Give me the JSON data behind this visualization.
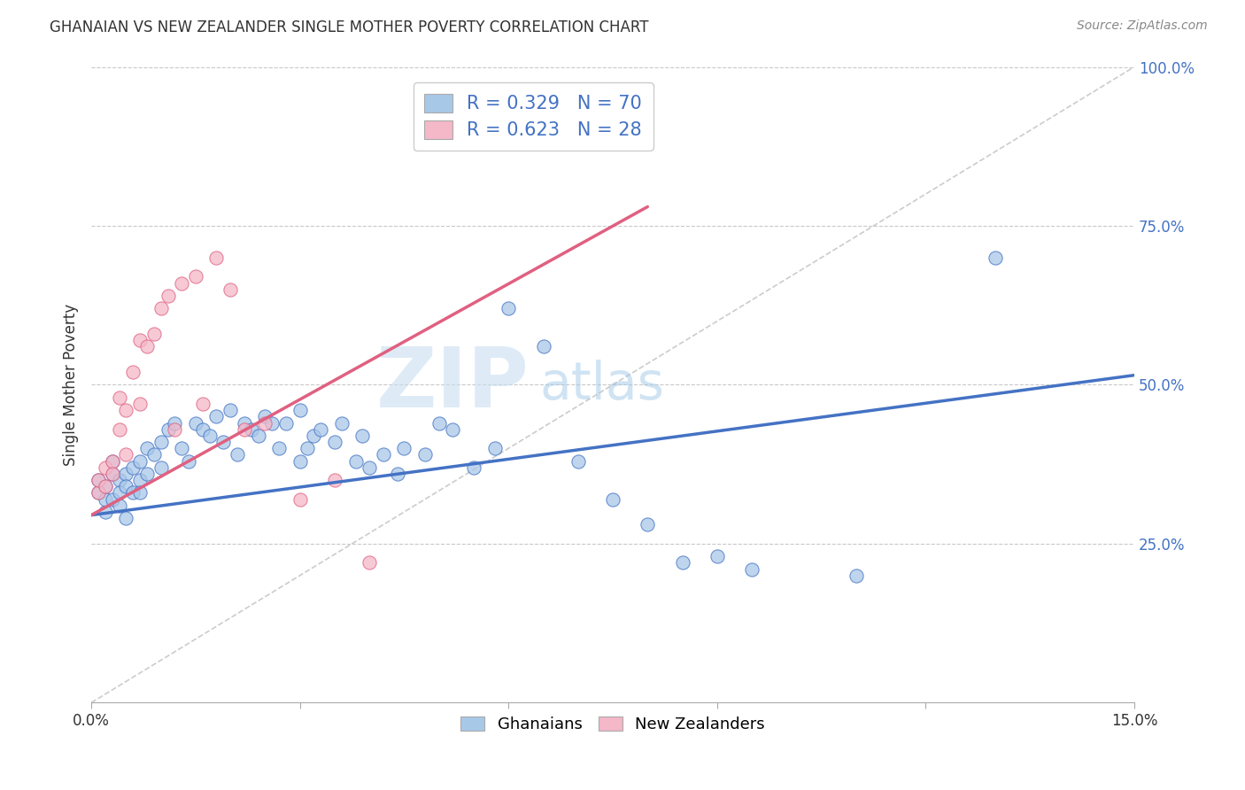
{
  "title": "GHANAIAN VS NEW ZEALANDER SINGLE MOTHER POVERTY CORRELATION CHART",
  "source": "Source: ZipAtlas.com",
  "ylabel": "Single Mother Poverty",
  "x_min": 0.0,
  "x_max": 0.15,
  "y_min": 0.0,
  "y_max": 1.0,
  "x_ticks": [
    0.0,
    0.03,
    0.06,
    0.09,
    0.12,
    0.15
  ],
  "x_tick_labels": [
    "0.0%",
    "",
    "",
    "",
    "",
    "15.0%"
  ],
  "y_ticks": [
    0.25,
    0.5,
    0.75,
    1.0
  ],
  "y_tick_labels": [
    "25.0%",
    "50.0%",
    "75.0%",
    "100.0%"
  ],
  "ghanaian_color": "#a8c8e8",
  "ghanaian_edge": "#4472c4",
  "nz_color": "#f4b8c8",
  "nz_edge": "#e06080",
  "trendline_ghanaian": "#4472c4",
  "trendline_nz": "#e06080",
  "diagonal_color": "#cccccc",
  "legend_r1": "0.329",
  "legend_n1": "70",
  "legend_r2": "0.623",
  "legend_n2": "28",
  "watermark_zip": "ZIP",
  "watermark_atlas": "atlas",
  "background": "#ffffff",
  "ghanaian_x": [
    0.001,
    0.001,
    0.002,
    0.002,
    0.002,
    0.003,
    0.003,
    0.003,
    0.004,
    0.004,
    0.004,
    0.005,
    0.005,
    0.005,
    0.006,
    0.006,
    0.007,
    0.007,
    0.007,
    0.008,
    0.008,
    0.009,
    0.01,
    0.01,
    0.011,
    0.012,
    0.013,
    0.014,
    0.015,
    0.016,
    0.017,
    0.018,
    0.019,
    0.02,
    0.021,
    0.022,
    0.023,
    0.024,
    0.025,
    0.026,
    0.027,
    0.028,
    0.03,
    0.03,
    0.031,
    0.032,
    0.033,
    0.035,
    0.036,
    0.038,
    0.039,
    0.04,
    0.042,
    0.044,
    0.045,
    0.048,
    0.05,
    0.052,
    0.055,
    0.058,
    0.06,
    0.065,
    0.07,
    0.075,
    0.08,
    0.085,
    0.09,
    0.095,
    0.11,
    0.13
  ],
  "ghanaian_y": [
    0.33,
    0.35,
    0.34,
    0.3,
    0.32,
    0.36,
    0.38,
    0.32,
    0.35,
    0.31,
    0.33,
    0.36,
    0.34,
    0.29,
    0.37,
    0.33,
    0.38,
    0.35,
    0.33,
    0.4,
    0.36,
    0.39,
    0.41,
    0.37,
    0.43,
    0.44,
    0.4,
    0.38,
    0.44,
    0.43,
    0.42,
    0.45,
    0.41,
    0.46,
    0.39,
    0.44,
    0.43,
    0.42,
    0.45,
    0.44,
    0.4,
    0.44,
    0.38,
    0.46,
    0.4,
    0.42,
    0.43,
    0.41,
    0.44,
    0.38,
    0.42,
    0.37,
    0.39,
    0.36,
    0.4,
    0.39,
    0.44,
    0.43,
    0.37,
    0.4,
    0.62,
    0.56,
    0.38,
    0.32,
    0.28,
    0.22,
    0.23,
    0.21,
    0.2,
    0.7
  ],
  "nz_x": [
    0.001,
    0.001,
    0.002,
    0.002,
    0.003,
    0.003,
    0.004,
    0.004,
    0.005,
    0.005,
    0.006,
    0.007,
    0.007,
    0.008,
    0.009,
    0.01,
    0.011,
    0.012,
    0.013,
    0.015,
    0.016,
    0.018,
    0.02,
    0.022,
    0.025,
    0.03,
    0.035,
    0.04
  ],
  "nz_y": [
    0.33,
    0.35,
    0.37,
    0.34,
    0.38,
    0.36,
    0.48,
    0.43,
    0.46,
    0.39,
    0.52,
    0.47,
    0.57,
    0.56,
    0.58,
    0.62,
    0.64,
    0.43,
    0.66,
    0.67,
    0.47,
    0.7,
    0.65,
    0.43,
    0.44,
    0.32,
    0.35,
    0.22
  ],
  "ghanaian_trend_x0": 0.0,
  "ghanaian_trend_x1": 0.15,
  "ghanaian_trend_y0": 0.295,
  "ghanaian_trend_y1": 0.515,
  "nz_trend_x0": 0.0,
  "nz_trend_x1": 0.08,
  "nz_trend_y0": 0.295,
  "nz_trend_y1": 0.78
}
